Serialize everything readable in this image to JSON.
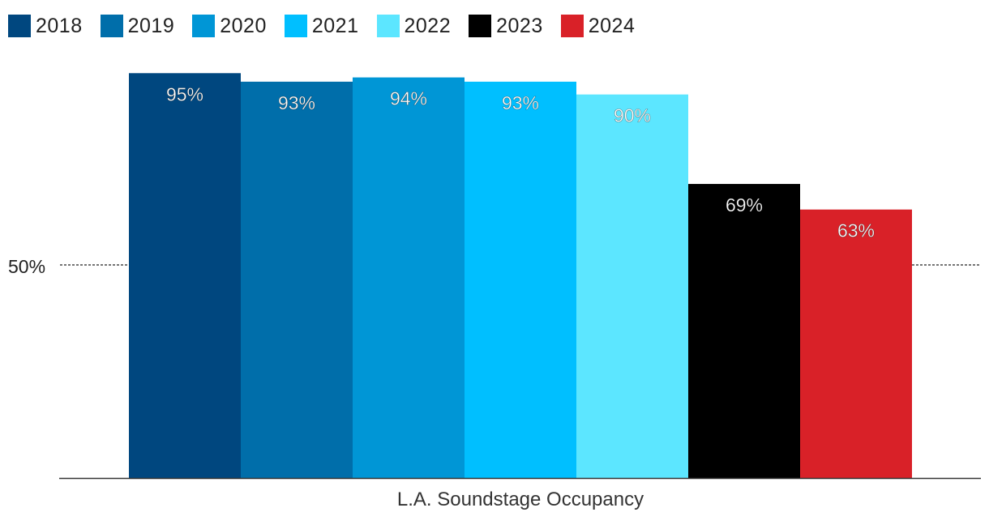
{
  "chart_data": {
    "type": "bar",
    "xlabel": "L.A. Soundstage Occupancy",
    "ylabel": "",
    "ylim": [
      0,
      100
    ],
    "reference_line": {
      "value": 50,
      "label": "50%",
      "style": "dashed"
    },
    "grid": false,
    "legend_position": "top-left",
    "series": [
      {
        "name": "2018",
        "values": [
          95
        ],
        "label": "95%",
        "color": "#00477F"
      },
      {
        "name": "2019",
        "values": [
          93
        ],
        "label": "93%",
        "color": "#006EAA"
      },
      {
        "name": "2020",
        "values": [
          94
        ],
        "label": "94%",
        "color": "#0096D6"
      },
      {
        "name": "2021",
        "values": [
          93
        ],
        "label": "93%",
        "color": "#00BFFF"
      },
      {
        "name": "2022",
        "values": [
          90
        ],
        "label": "90%",
        "color": "#5CE6FF"
      },
      {
        "name": "2023",
        "values": [
          69
        ],
        "label": "69%",
        "color": "#000000"
      },
      {
        "name": "2024",
        "values": [
          63
        ],
        "label": "63%",
        "color": "#D92128"
      }
    ]
  }
}
